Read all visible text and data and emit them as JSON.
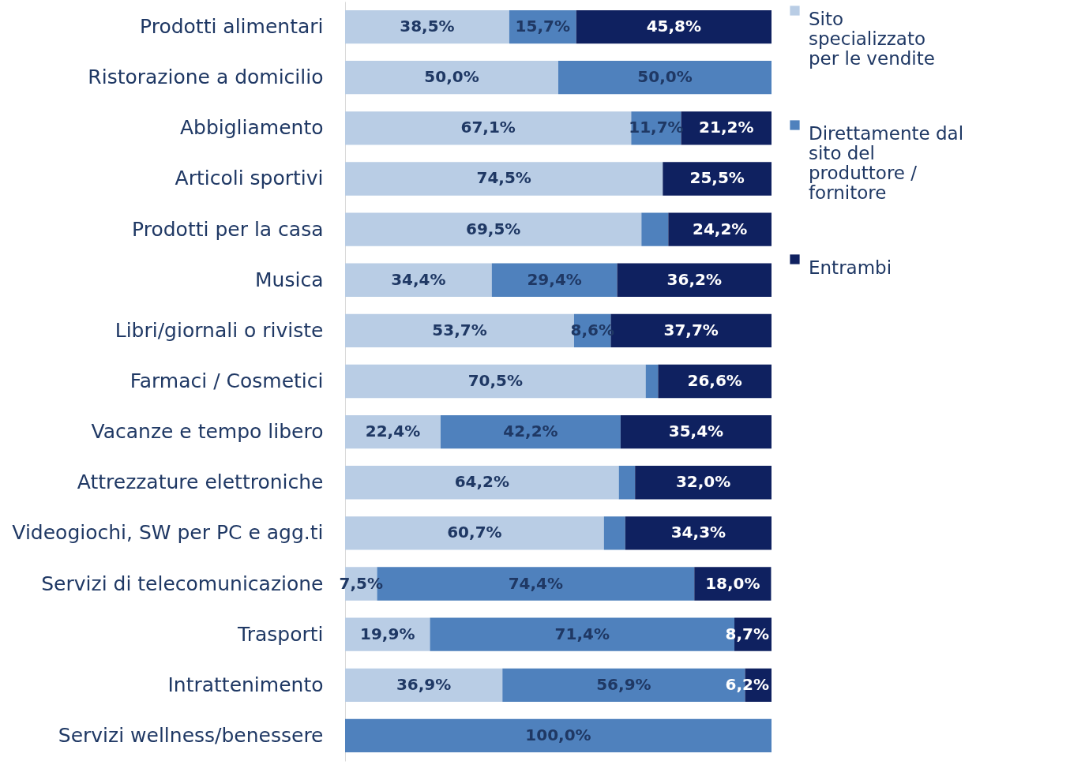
{
  "chart_data": {
    "type": "bar",
    "orientation": "horizontal",
    "stacked": true,
    "legend": "right",
    "categories": [
      "Prodotti alimentari",
      "Ristorazione a domicilio",
      "Abbigliamento",
      "Articoli sportivi",
      "Prodotti per la casa",
      "Musica",
      "Libri/giornali o riviste",
      "Farmaci / Cosmetici",
      "Vacanze e tempo libero",
      "Attrezzature elettroniche",
      "Videogiochi, SW per PC e agg.ti",
      "Servizi di telecomunicazione",
      "Trasporti",
      "Intrattenimento",
      "Servizi wellness/benessere"
    ],
    "series": [
      {
        "name": "Sito specializzato per le vendite",
        "color": "#b9cde5",
        "values": [
          38.5,
          50.0,
          67.1,
          74.5,
          69.5,
          34.4,
          53.7,
          70.5,
          22.4,
          64.2,
          60.7,
          7.5,
          19.9,
          36.9,
          0
        ],
        "value_labels": [
          "38,5%",
          "50,0%",
          "67,1%",
          "74,5%",
          "69,5%",
          "34,4%",
          "53,7%",
          "70,5%",
          "22,4%",
          "64,2%",
          "60,7%",
          "7,5%",
          "19,9%",
          "36,9%",
          null
        ]
      },
      {
        "name": "Direttamente dal sito del produttore / fornitore",
        "color": "#4f81bd",
        "values": [
          15.7,
          50.0,
          11.7,
          0,
          6.3,
          29.4,
          8.6,
          2.9,
          42.2,
          3.8,
          5.0,
          74.4,
          71.4,
          56.9,
          100.0
        ],
        "value_labels": [
          "15,7%",
          "50,0%",
          "11,7%",
          null,
          null,
          "29,4%",
          "8,6%",
          null,
          "42,2%",
          null,
          null,
          "74,4%",
          "71,4%",
          "56,9%",
          "100,0%"
        ]
      },
      {
        "name": "Entrambi",
        "color": "#0f2160",
        "values": [
          45.8,
          0,
          21.2,
          25.5,
          24.2,
          36.2,
          37.7,
          26.6,
          35.4,
          32.0,
          34.3,
          18.0,
          8.7,
          6.2,
          0
        ],
        "value_labels": [
          "45,8%",
          null,
          "21,2%",
          "25,5%",
          "24,2%",
          "36,2%",
          "37,7%",
          "26,6%",
          "35,4%",
          "32,0%",
          "34,3%",
          "18,0%",
          "8,7%",
          "6,2%",
          null
        ]
      }
    ]
  }
}
